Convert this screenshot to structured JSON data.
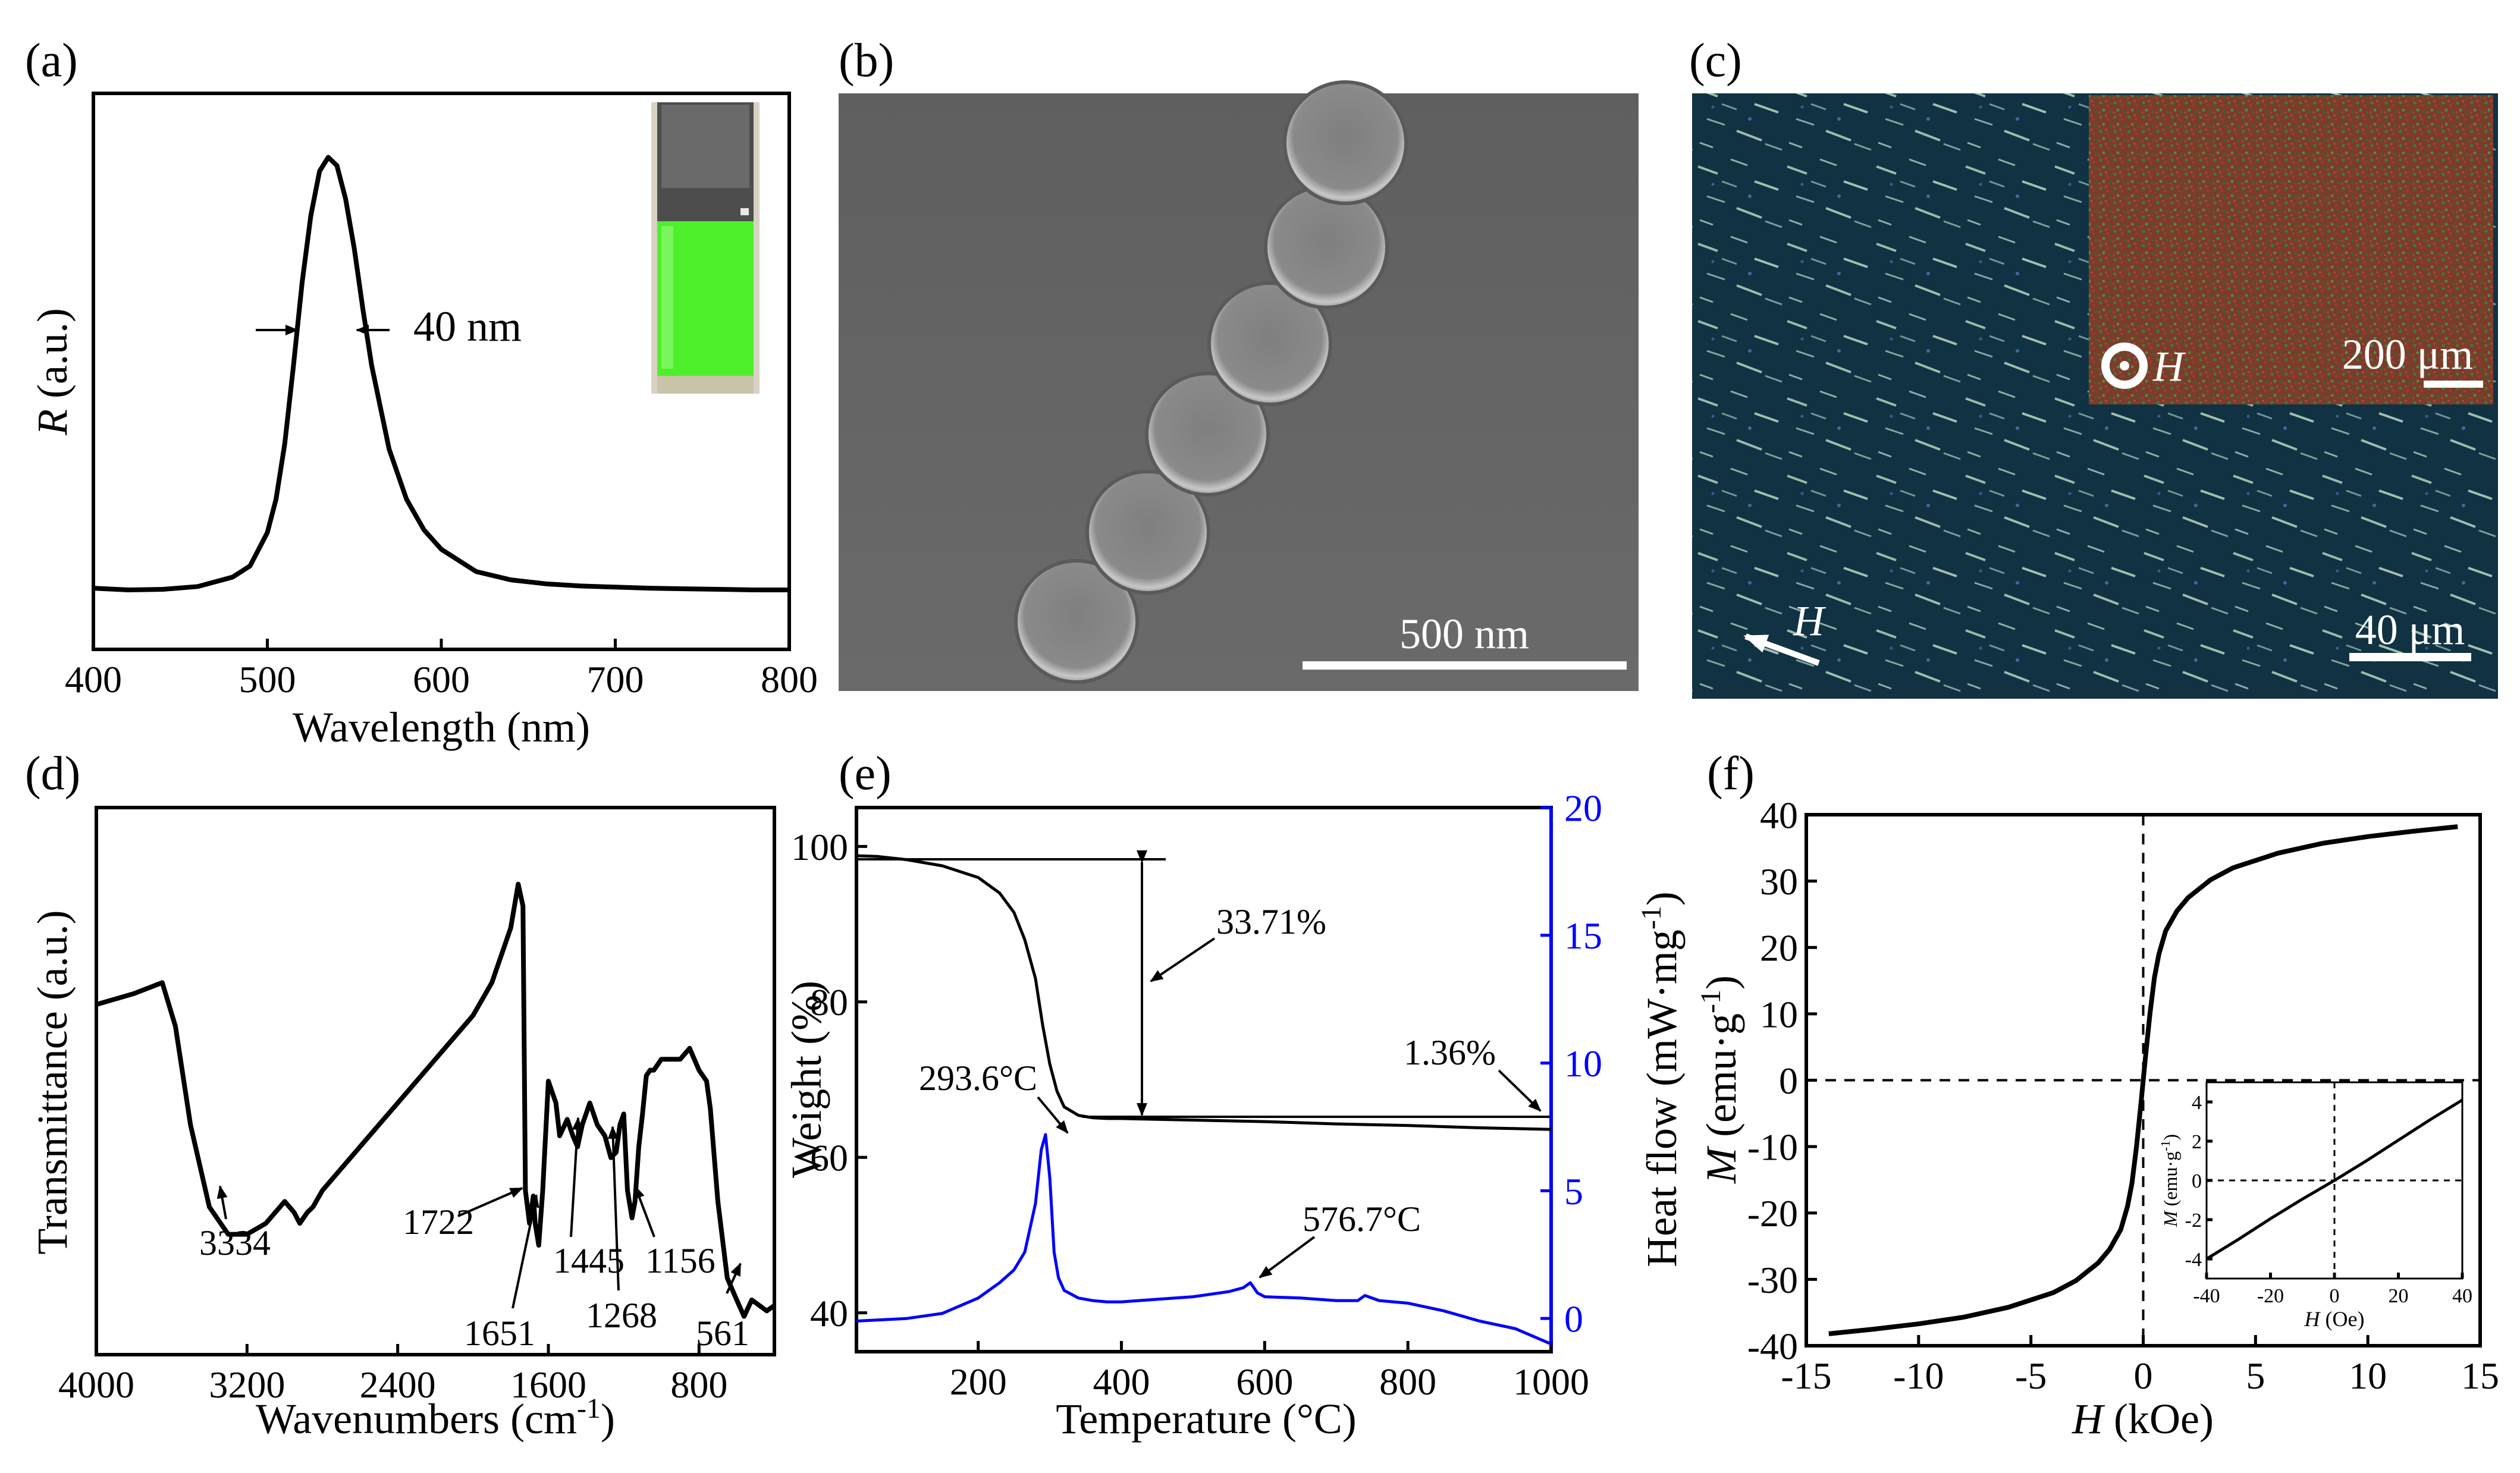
{
  "panels": {
    "a": {
      "label": "(a)",
      "inset_annotation": "40 nm"
    },
    "b": {
      "label": "(b)",
      "scalebar": "500 nm"
    },
    "c": {
      "label": "(c)",
      "scalebar": "40 μm",
      "field_label": "H",
      "inset_scalebar": "200 μm",
      "inset_field_label": "H"
    },
    "d": {
      "label": "(d)"
    },
    "e": {
      "label": "(e)"
    },
    "f": {
      "label": "(f)"
    }
  },
  "chart_data": [
    {
      "id": "a",
      "type": "line",
      "xlabel": "Wavelength (nm)",
      "ylabel": "R (a.u.)",
      "ylabel_italic": "R",
      "ylabel_rest": " (a.u.)",
      "xlim": [
        400,
        800
      ],
      "ylim": [
        0,
        1
      ],
      "xticks": [
        400,
        500,
        600,
        700,
        800
      ],
      "x": [
        400,
        420,
        440,
        460,
        480,
        490,
        500,
        505,
        510,
        515,
        520,
        525,
        530,
        535,
        540,
        545,
        550,
        555,
        560,
        570,
        580,
        590,
        600,
        620,
        640,
        660,
        680,
        700,
        720,
        740,
        760,
        780,
        800
      ],
      "y": [
        0.11,
        0.107,
        0.108,
        0.113,
        0.13,
        0.15,
        0.21,
        0.27,
        0.37,
        0.51,
        0.66,
        0.78,
        0.86,
        0.885,
        0.87,
        0.81,
        0.72,
        0.61,
        0.51,
        0.36,
        0.27,
        0.215,
        0.18,
        0.14,
        0.125,
        0.118,
        0.114,
        0.112,
        0.11,
        0.109,
        0.108,
        0.107,
        0.107
      ],
      "annotation": "40 nm"
    },
    {
      "id": "d",
      "type": "line",
      "xlabel": "Wavenumbers (cm",
      "xlabel_sup": "-1",
      "xlabel_end": ")",
      "ylabel": "Transmittance (a.u.)",
      "xlim": [
        4000,
        400
      ],
      "ylim": [
        0,
        1
      ],
      "xticks": [
        4000,
        3200,
        2400,
        1600,
        800
      ],
      "x": [
        4000,
        3800,
        3650,
        3580,
        3500,
        3400,
        3300,
        3200,
        3100,
        3000,
        2950,
        2920,
        2880,
        2850,
        2800,
        2600,
        2400,
        2200,
        2000,
        1900,
        1800,
        1760,
        1735,
        1722,
        1700,
        1680,
        1670,
        1651,
        1630,
        1600,
        1560,
        1540,
        1500,
        1470,
        1445,
        1420,
        1380,
        1340,
        1300,
        1268,
        1240,
        1220,
        1200,
        1180,
        1156,
        1140,
        1120,
        1100,
        1080,
        1060,
        1040,
        1000,
        900,
        850,
        800,
        760,
        740,
        700,
        650,
        600,
        561,
        520,
        480,
        440,
        400
      ],
      "y": [
        0.64,
        0.66,
        0.68,
        0.6,
        0.42,
        0.27,
        0.22,
        0.22,
        0.24,
        0.28,
        0.26,
        0.24,
        0.26,
        0.27,
        0.3,
        0.38,
        0.46,
        0.54,
        0.62,
        0.68,
        0.78,
        0.86,
        0.82,
        0.3,
        0.24,
        0.29,
        0.24,
        0.2,
        0.3,
        0.5,
        0.46,
        0.4,
        0.43,
        0.4,
        0.38,
        0.42,
        0.46,
        0.42,
        0.4,
        0.36,
        0.37,
        0.42,
        0.44,
        0.3,
        0.25,
        0.28,
        0.38,
        0.44,
        0.51,
        0.52,
        0.52,
        0.54,
        0.54,
        0.56,
        0.52,
        0.5,
        0.45,
        0.28,
        0.14,
        0.1,
        0.07,
        0.1,
        0.09,
        0.08,
        0.09
      ],
      "annotations": [
        {
          "text": "3334",
          "x": 3334
        },
        {
          "text": "1722",
          "x": 1722
        },
        {
          "text": "1651",
          "x": 1651
        },
        {
          "text": "1445",
          "x": 1445
        },
        {
          "text": "1268",
          "x": 1268
        },
        {
          "text": "1156",
          "x": 1156
        },
        {
          "text": "561",
          "x": 561
        }
      ]
    },
    {
      "id": "e",
      "type": "line",
      "xlabel": "Temperature (°C)",
      "ylabel": "Weight (%)",
      "ylabel2": "Heat flow (mW·mg",
      "ylabel2_sup": "-1",
      "ylabel2_end": ")",
      "xlim": [
        30,
        1000
      ],
      "ylim": [
        35,
        105
      ],
      "ylim2": [
        -1.3,
        20
      ],
      "xticks": [
        200,
        400,
        600,
        800,
        1000
      ],
      "yticks": [
        40,
        60,
        80,
        100
      ],
      "yticks2": [
        0,
        5,
        10,
        15,
        20
      ],
      "series": [
        {
          "name": "Weight",
          "axis": "left",
          "color": "#000000",
          "x": [
            30,
            60,
            100,
            150,
            200,
            230,
            250,
            265,
            280,
            290,
            300,
            310,
            320,
            340,
            360,
            380,
            400,
            450,
            500,
            600,
            700,
            800,
            900,
            1000
          ],
          "y": [
            98.8,
            98.7,
            98.3,
            97.5,
            96,
            94,
            91.5,
            88,
            83,
            77,
            72,
            68.5,
            66.5,
            65.4,
            65.1,
            65,
            65,
            64.9,
            64.8,
            64.6,
            64.3,
            64.1,
            63.8,
            63.6
          ]
        },
        {
          "name": "Heat flow",
          "axis": "right",
          "color": "#0000ff",
          "x": [
            30,
            100,
            150,
            200,
            230,
            250,
            265,
            280,
            288,
            294,
            300,
            306,
            312,
            320,
            340,
            360,
            380,
            400,
            450,
            500,
            550,
            570,
            580,
            590,
            600,
            650,
            700,
            730,
            740,
            760,
            800,
            850,
            900,
            950,
            1000
          ],
          "y": [
            -0.1,
            0.0,
            0.2,
            0.8,
            1.4,
            1.9,
            2.6,
            4.5,
            6.6,
            7.2,
            5.5,
            2.6,
            1.6,
            1.1,
            0.8,
            0.7,
            0.65,
            0.65,
            0.75,
            0.85,
            1.05,
            1.2,
            1.4,
            1.0,
            0.85,
            0.8,
            0.7,
            0.7,
            0.9,
            0.7,
            0.6,
            0.3,
            -0.1,
            -0.4,
            -1.0
          ]
        }
      ],
      "annotations": [
        {
          "text": "33.71%"
        },
        {
          "text": "1.36%"
        },
        {
          "text": "293.6°C"
        },
        {
          "text": "576.7°C"
        }
      ]
    },
    {
      "id": "f",
      "type": "line",
      "xlabel": "H (kOe)",
      "xlabel_italic": "H",
      "xlabel_rest": " (kOe)",
      "ylabel": "M (emu·g",
      "ylabel_italic": "M",
      "ylabel_rest": " (emu·g",
      "ylabel_sup": "-1",
      "ylabel_end": ")",
      "xlim": [
        -15,
        15
      ],
      "ylim": [
        -40,
        40
      ],
      "xticks": [
        -15,
        -10,
        -5,
        0,
        5,
        10,
        15
      ],
      "yticks": [
        -40,
        -30,
        -20,
        -10,
        0,
        10,
        20,
        30,
        40
      ],
      "x": [
        -14,
        -12,
        -10,
        -8,
        -6,
        -4,
        -3,
        -2,
        -1.5,
        -1,
        -0.7,
        -0.5,
        -0.3,
        -0.2,
        -0.1,
        0,
        0.1,
        0.2,
        0.3,
        0.5,
        0.7,
        1,
        1.5,
        2,
        3,
        4,
        6,
        8,
        10,
        12,
        14
      ],
      "y": [
        -38.2,
        -37.5,
        -36.7,
        -35.7,
        -34.2,
        -32,
        -30.2,
        -27.5,
        -25.5,
        -22.5,
        -19,
        -15.5,
        -10,
        -6.8,
        -3.5,
        0,
        3.5,
        6.8,
        10,
        15.5,
        19,
        22.5,
        25.5,
        27.5,
        30.2,
        32,
        34.2,
        35.7,
        36.7,
        37.5,
        38.2
      ],
      "inset": {
        "xlabel": "H (Oe)",
        "xlabel_italic": "H",
        "xlabel_rest": " (Oe)",
        "ylabel": "M (emu·g",
        "ylabel_italic": "M",
        "ylabel_rest": " (emu·g",
        "ylabel_sup": "-1",
        "ylabel_end": ")",
        "xlim": [
          -40,
          40
        ],
        "ylim": [
          -5,
          5
        ],
        "xticks": [
          -40,
          -20,
          0,
          20,
          40
        ],
        "yticks": [
          -4,
          -2,
          0,
          2,
          4
        ],
        "x": [
          -40,
          -30,
          -20,
          -10,
          0,
          10,
          20,
          30,
          40
        ],
        "y": [
          -4.0,
          -3.0,
          -1.95,
          -0.95,
          0,
          1.0,
          2.05,
          3.1,
          4.1
        ]
      }
    }
  ]
}
